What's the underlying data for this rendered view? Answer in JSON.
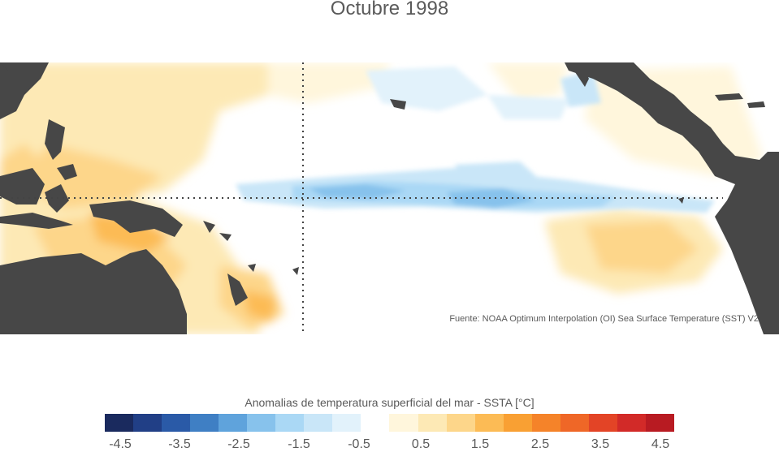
{
  "title": "Octubre 1998",
  "source": "Fuente: NOAA Optimum Interpolation (OI) Sea Surface Temperature (SST) V2",
  "colorbar": {
    "label": "Anomalias de temperatura superficial del mar - SSTA  [°C]",
    "colors": [
      "#1a2a5e",
      "#213f86",
      "#2a5aa7",
      "#3f7fc4",
      "#5fa3dc",
      "#87c2ec",
      "#aad8f5",
      "#c9e6f8",
      "#e2f2fb",
      "#ffffff",
      "#fff6dc",
      "#fde9b5",
      "#fdd68a",
      "#fcbb55",
      "#f9a033",
      "#f58329",
      "#ef6727",
      "#e34426",
      "#d22a28",
      "#b81b22"
    ],
    "ticks": [
      "-4.5",
      "-3.5",
      "-2.5",
      "-1.5",
      "-0.5",
      "0.5",
      "1.5",
      "2.5",
      "3.5",
      "4.5"
    ]
  },
  "palette": {
    "land": "#474747",
    "grid_line": "#444444"
  }
}
